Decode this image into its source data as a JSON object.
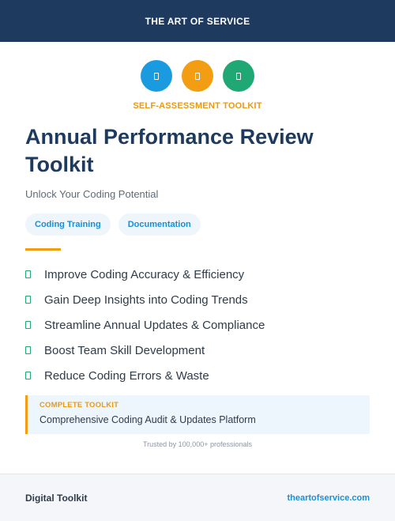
{
  "header": {
    "brand": "THE ART OF SERVICE"
  },
  "icons": [
    {
      "name": "blue-icon",
      "color": "#1a9be0"
    },
    {
      "name": "orange-icon",
      "color": "#f29d12"
    },
    {
      "name": "green-icon",
      "color": "#1fa874"
    }
  ],
  "hero": {
    "eyebrow": "SELF-ASSESSMENT TOOLKIT",
    "title_line1": "Annual Performance Review",
    "title_line2": "Toolkit",
    "subtitle": "Unlock Your Coding Potential"
  },
  "tags": [
    "Coding Training",
    "Documentation"
  ],
  "features": [
    "Improve Coding Accuracy & Efficiency",
    "Gain Deep Insights into Coding Trends",
    "Streamline Annual Updates & Compliance",
    "Boost Team Skill Development",
    "Reduce Coding Errors & Waste"
  ],
  "callout": {
    "label": "COMPLETE TOOLKIT",
    "text": "Comprehensive Coding Audit & Updates Platform"
  },
  "trusted": "Trusted by 100,000+ professionals",
  "footer": {
    "left": "Digital Toolkit",
    "right": "theartofservice.com"
  },
  "colors": {
    "navy": "#1e3a5f",
    "accent_orange": "#f29d12",
    "accent_blue": "#1a8fd6",
    "accent_green": "#1fa874"
  }
}
